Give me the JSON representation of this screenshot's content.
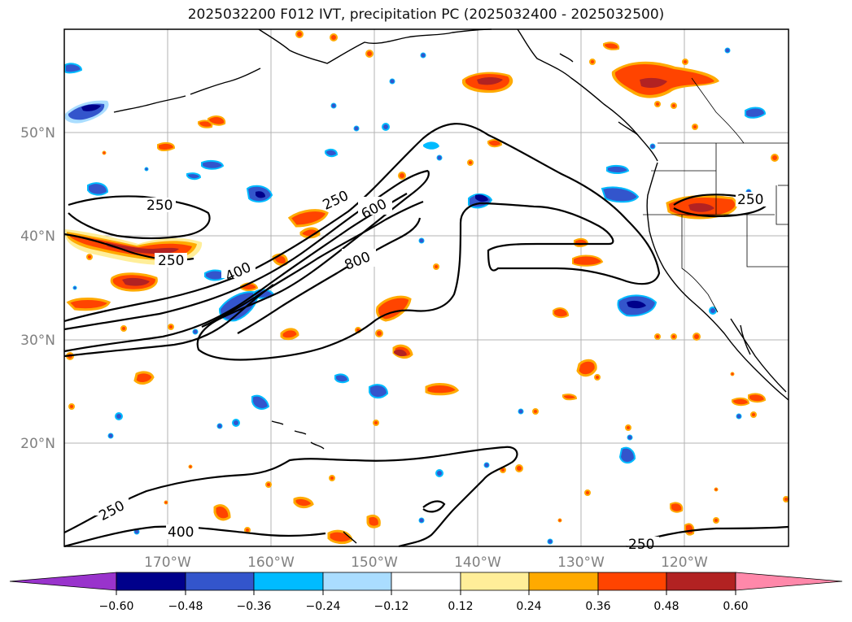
{
  "title": "2025032200 F012 IVT, precipitation PC (2025032400 - 2025032500)",
  "map": {
    "lat_labels": [
      "50°N",
      "40°N",
      "30°N",
      "20°N"
    ],
    "lon_labels": [
      "170°W",
      "160°W",
      "150°W",
      "140°W",
      "130°W",
      "120°W"
    ],
    "contour_labels": [
      "250",
      "250",
      "400",
      "250",
      "600",
      "800",
      "250",
      "250",
      "400",
      "250"
    ]
  },
  "colorbar": {
    "ticks": [
      "−0.60",
      "−0.48",
      "−0.36",
      "−0.24",
      "−0.12",
      "0.12",
      "0.24",
      "0.36",
      "0.48",
      "0.60"
    ],
    "colors": {
      "extend_low": "#9933cc",
      "c1": "#00008b",
      "c2": "#3355cc",
      "c3": "#00bbff",
      "c4": "#aaddff",
      "c5": "#ffffff",
      "c6": "#ffee99",
      "c7": "#ffaa00",
      "c8": "#ff4400",
      "c9": "#b22222",
      "extend_high": "#ff88aa"
    }
  }
}
